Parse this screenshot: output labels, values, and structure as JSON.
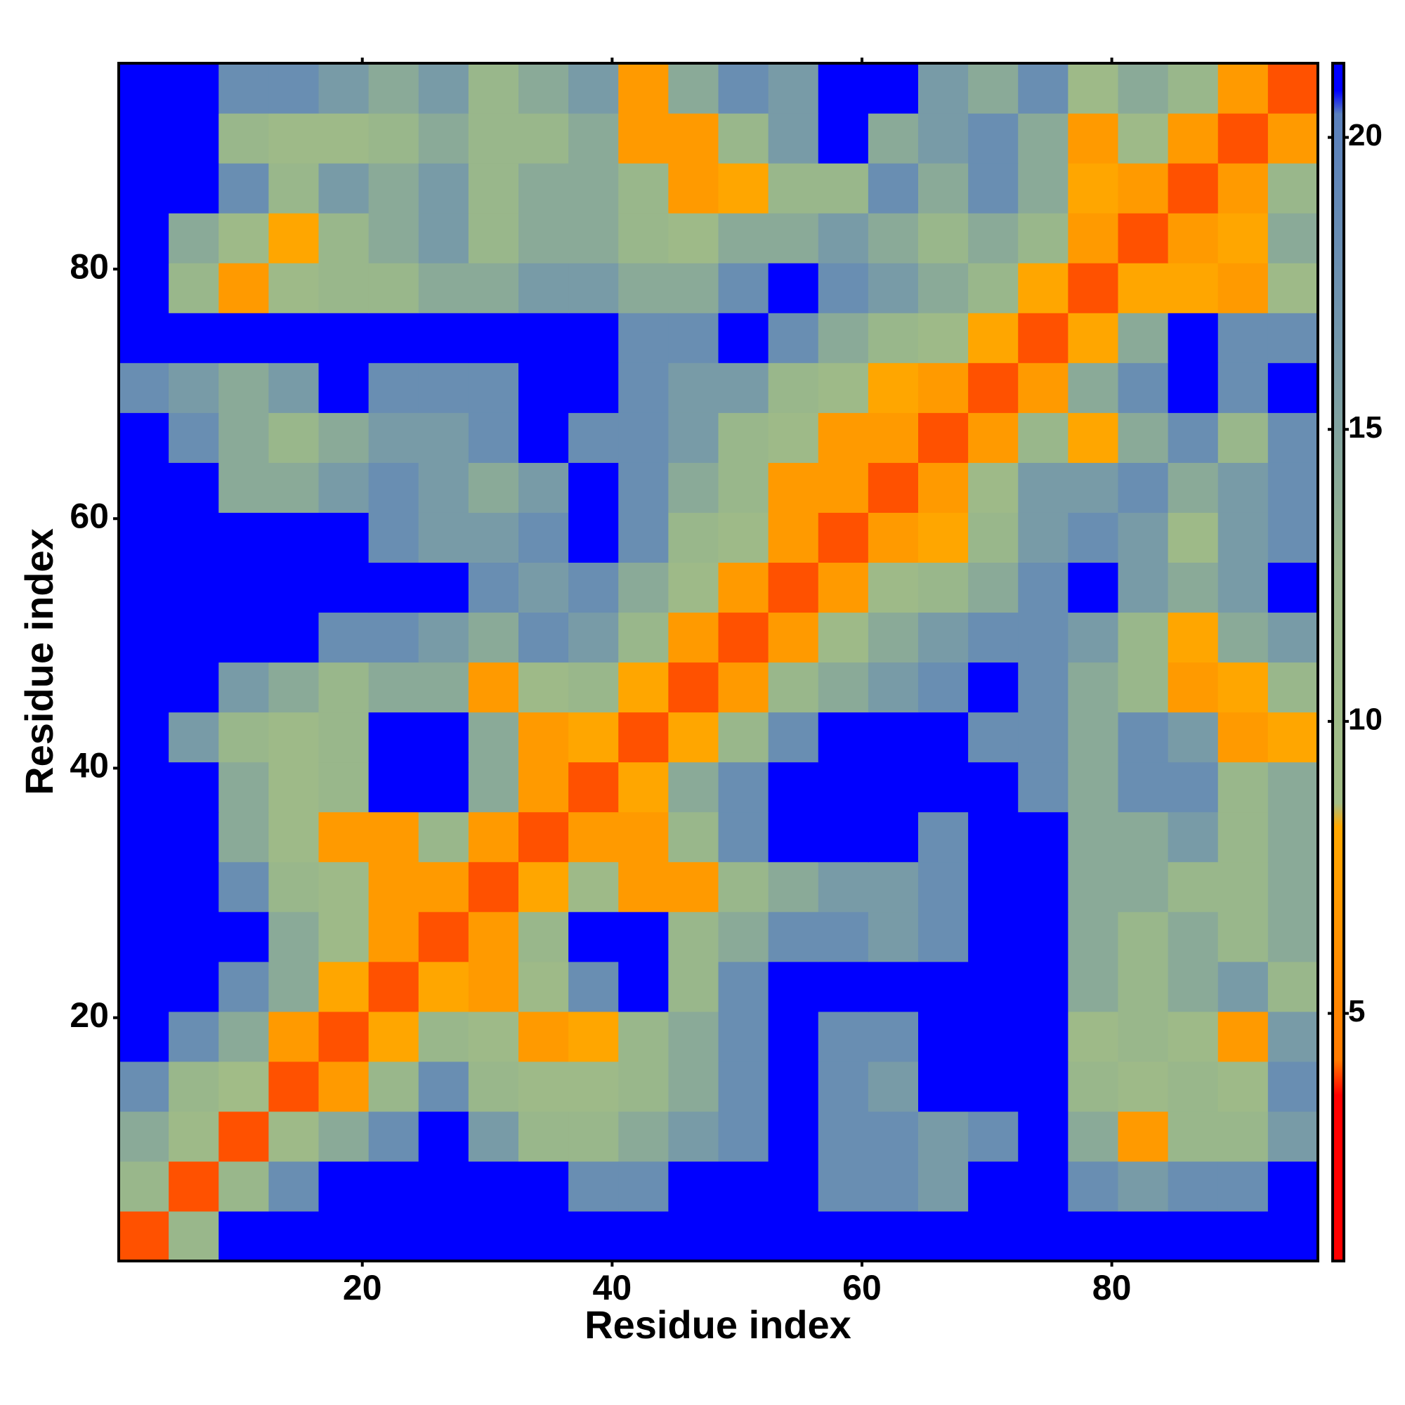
{
  "chart_data": {
    "type": "heatmap",
    "x_label": "Residue index",
    "y_label": "Residue index",
    "x": [
      2.5,
      6.5,
      10.5,
      14.5,
      18.5,
      22.5,
      26.5,
      30.5,
      34.5,
      38.5,
      42.5,
      46.5,
      50.5,
      54.5,
      58.5,
      62.5,
      66.5,
      70.5,
      74.5,
      78.5,
      82.5,
      86.5,
      90.5,
      94.5
    ],
    "y": [
      2.5,
      6.5,
      10.5,
      14.5,
      18.5,
      22.5,
      26.5,
      30.5,
      34.5,
      38.5,
      42.5,
      46.5,
      50.5,
      54.5,
      58.5,
      62.5,
      66.5,
      70.5,
      74.5,
      78.5,
      82.5,
      86.5,
      90.5,
      94.5
    ],
    "z": [
      [
        4,
        12,
        21,
        21,
        21,
        21,
        21,
        21,
        21,
        21,
        21,
        21,
        21,
        21,
        21,
        21,
        21,
        21,
        21,
        21,
        21,
        21,
        21,
        21
      ],
      [
        12,
        4,
        12,
        18,
        21,
        21,
        21,
        21,
        21,
        18,
        18,
        21,
        21,
        21,
        18,
        18,
        16,
        21,
        21,
        18,
        16,
        18,
        18,
        21
      ],
      [
        14,
        10,
        4,
        10,
        14,
        18,
        21,
        16,
        12,
        12,
        14,
        16,
        18,
        21,
        18,
        18,
        16,
        18,
        21,
        14,
        7,
        12,
        12,
        16
      ],
      [
        18,
        12,
        9,
        4,
        7,
        12,
        18,
        12,
        10,
        10,
        12,
        14,
        18,
        21,
        18,
        16,
        21,
        21,
        21,
        12,
        10,
        12,
        10,
        18
      ],
      [
        21,
        18,
        14,
        7,
        4,
        8,
        12,
        10,
        7,
        8,
        12,
        14,
        18,
        21,
        18,
        18,
        21,
        21,
        21,
        10,
        12,
        10,
        7,
        16
      ],
      [
        21,
        21,
        18,
        14,
        8,
        4,
        8,
        7,
        10,
        18,
        21,
        12,
        18,
        21,
        21,
        21,
        21,
        21,
        21,
        14,
        12,
        14,
        16,
        12
      ],
      [
        21,
        21,
        21,
        14,
        10,
        7,
        4,
        7,
        12,
        21,
        21,
        12,
        14,
        18,
        18,
        16,
        18,
        21,
        21,
        14,
        12,
        14,
        12,
        14
      ],
      [
        21,
        21,
        18,
        12,
        10,
        7,
        7,
        4,
        8,
        10,
        7,
        7,
        12,
        14,
        16,
        16,
        18,
        21,
        21,
        14,
        14,
        12,
        12,
        14
      ],
      [
        21,
        21,
        14,
        10,
        7,
        7,
        12,
        7,
        4,
        7,
        7,
        12,
        18,
        21,
        21,
        21,
        18,
        21,
        21,
        14,
        14,
        16,
        12,
        14
      ],
      [
        21,
        21,
        14,
        10,
        12,
        21,
        21,
        14,
        7,
        4,
        8,
        14,
        18,
        21,
        21,
        21,
        21,
        21,
        18,
        14,
        18,
        18,
        12,
        14
      ],
      [
        21,
        16,
        12,
        10,
        12,
        21,
        21,
        14,
        7,
        8,
        4,
        8,
        12,
        18,
        21,
        21,
        21,
        18,
        18,
        14,
        18,
        16,
        7,
        8
      ],
      [
        21,
        21,
        16,
        14,
        12,
        14,
        14,
        7,
        10,
        12,
        8,
        4,
        7,
        12,
        14,
        16,
        18,
        21,
        18,
        14,
        12,
        7,
        8,
        12
      ],
      [
        21,
        21,
        21,
        21,
        18,
        18,
        16,
        14,
        18,
        16,
        12,
        7,
        4,
        7,
        10,
        14,
        16,
        18,
        18,
        16,
        12,
        8,
        14,
        16
      ],
      [
        21,
        21,
        21,
        21,
        21,
        21,
        21,
        18,
        16,
        18,
        14,
        10,
        7,
        4,
        7,
        10,
        12,
        14,
        18,
        21,
        16,
        14,
        16,
        21
      ],
      [
        21,
        21,
        21,
        21,
        21,
        18,
        16,
        16,
        18,
        21,
        18,
        12,
        10,
        7,
        4,
        7,
        8,
        12,
        16,
        18,
        16,
        10,
        16,
        18
      ],
      [
        21,
        21,
        14,
        14,
        16,
        18,
        16,
        14,
        16,
        21,
        18,
        14,
        12,
        7,
        7,
        4,
        7,
        10,
        16,
        16,
        18,
        14,
        16,
        18
      ],
      [
        21,
        18,
        14,
        12,
        14,
        16,
        16,
        18,
        21,
        18,
        18,
        16,
        12,
        10,
        7,
        7,
        4,
        7,
        12,
        8,
        14,
        18,
        12,
        18
      ],
      [
        18,
        16,
        14,
        16,
        21,
        18,
        18,
        18,
        21,
        21,
        18,
        16,
        16,
        12,
        10,
        8,
        7,
        4,
        7,
        14,
        18,
        21,
        18,
        21
      ],
      [
        21,
        21,
        21,
        21,
        21,
        21,
        21,
        21,
        21,
        21,
        18,
        18,
        21,
        18,
        14,
        12,
        10,
        8,
        4,
        8,
        14,
        21,
        18,
        18
      ],
      [
        21,
        12,
        7,
        10,
        12,
        12,
        14,
        14,
        16,
        16,
        14,
        14,
        18,
        21,
        18,
        16,
        14,
        12,
        8,
        4,
        8,
        8,
        7,
        10
      ],
      [
        21,
        14,
        10,
        8,
        12,
        14,
        16,
        12,
        14,
        14,
        12,
        10,
        14,
        14,
        16,
        14,
        12,
        14,
        12,
        7,
        4,
        7,
        8,
        14
      ],
      [
        21,
        21,
        18,
        12,
        16,
        14,
        16,
        12,
        14,
        14,
        12,
        7,
        8,
        12,
        12,
        18,
        14,
        18,
        14,
        8,
        7,
        4,
        7,
        12
      ],
      [
        21,
        21,
        12,
        10,
        10,
        12,
        14,
        12,
        12,
        14,
        7,
        7,
        12,
        16,
        21,
        14,
        16,
        18,
        14,
        7,
        10,
        7,
        4,
        7
      ],
      [
        21,
        21,
        18,
        18,
        16,
        14,
        16,
        12,
        14,
        16,
        7,
        14,
        18,
        16,
        21,
        21,
        16,
        14,
        18,
        10,
        14,
        12,
        7,
        4
      ]
    ],
    "xlim": [
      0.5,
      96.5
    ],
    "ylim": [
      0.5,
      96.5
    ],
    "xticks": [
      20,
      40,
      60,
      80
    ],
    "yticks": [
      20,
      40,
      60,
      80
    ],
    "zlim": [
      0.76,
      21.27
    ],
    "zticks": [
      5,
      10,
      15,
      20
    ],
    "colorscale": [
      [
        0.76,
        "#ff0000"
      ],
      [
        3.6,
        "#ff0000"
      ],
      [
        4.2,
        "#ff7a00"
      ],
      [
        8.2,
        "#ffa800"
      ],
      [
        8.6,
        "#a2bd86"
      ],
      [
        12.5,
        "#98b68c"
      ],
      [
        16.5,
        "#7397ab"
      ],
      [
        20.4,
        "#5a80bd"
      ],
      [
        20.8,
        "#0000ff"
      ],
      [
        21.27,
        "#0000ff"
      ]
    ]
  }
}
